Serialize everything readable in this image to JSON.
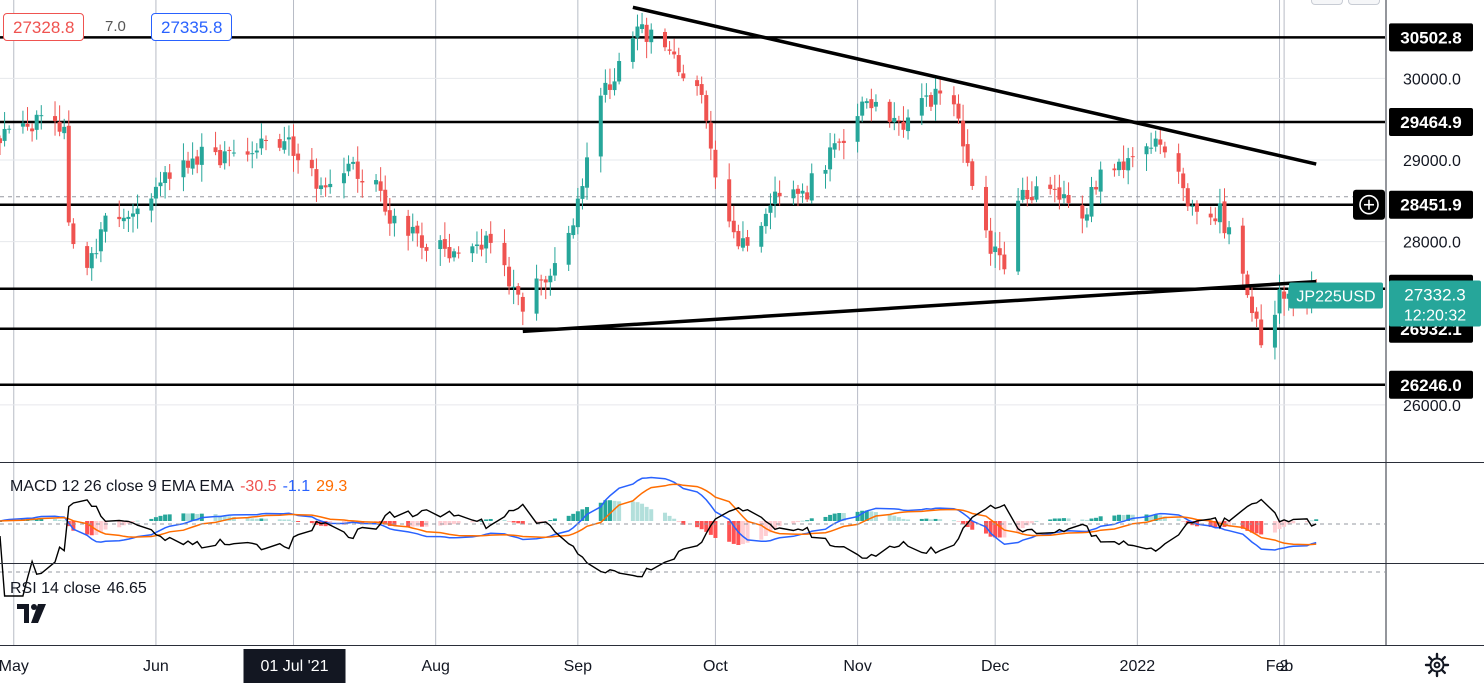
{
  "quote": {
    "sell": "27328.8",
    "spread": "7.0",
    "buy": "27335.8"
  },
  "symbol": {
    "label": "JP225USD",
    "last": "27332.3",
    "countdown": "12:20:32",
    "color": "#26a69a"
  },
  "colors": {
    "up": "#26a69a",
    "down": "#ef5350",
    "macd_line": "#2962ff",
    "signal_line": "#ff6d00",
    "hist_up_strong": "#26a69a",
    "hist_up_weak": "#b2dfdb",
    "hist_down_strong": "#ff5252",
    "hist_down_weak": "#ffcdd2",
    "rsi": "#000000",
    "grid": "#b8bcc6"
  },
  "macd_legend": {
    "title": "MACD 12 26 close 9 EMA EMA",
    "hist": "-30.5",
    "macd": "-1.1",
    "signal": "29.3"
  },
  "rsi_legend": {
    "title": "RSI 14 close",
    "value": "46.65"
  },
  "icons": [
    "tradingview-logo-icon",
    "crosshair-plus-icon",
    "gear-icon"
  ],
  "chart_data": [
    {
      "type": "candlestick",
      "title": "",
      "x_range": [
        "2021-04-28",
        "2022-02-24"
      ],
      "ylim": [
        25300,
        30960
      ],
      "y_ticks": [
        "30000.0",
        "29000.0",
        "28000.0",
        "26000.0"
      ],
      "x_ticks": [
        "May",
        "Jun",
        "01 Jul '21",
        "Aug",
        "Sep",
        "Oct",
        "Nov",
        "Dec",
        "2022",
        "Feb",
        "2"
      ],
      "x_ticks_dates": [
        "2021-05-01",
        "2021-06-01",
        "2021-07-01",
        "2021-08-01",
        "2021-09-01",
        "2021-10-01",
        "2021-11-01",
        "2021-12-01",
        "2022-01-01",
        "2022-02-01",
        "2022-02-02"
      ],
      "horizontal_levels": [
        "30502.8",
        "29464.9",
        "28451.9",
        "27422.9",
        "26932.1",
        "26246.0"
      ],
      "dashed_level": "28451.9",
      "trendlines": [
        {
          "from": [
            "2021-09-13",
            30870
          ],
          "to": [
            "2022-02-09",
            28950
          ]
        },
        {
          "from": [
            "2021-08-20",
            26900
          ],
          "to": [
            "2022-02-09",
            27510
          ]
        }
      ],
      "anchors": [
        [
          "2021-04-28",
          29300
        ],
        [
          "2021-05-07",
          29500
        ],
        [
          "2021-05-12",
          29400
        ],
        [
          "2021-05-13",
          28150
        ],
        [
          "2021-05-17",
          27650
        ],
        [
          "2021-05-21",
          28200
        ],
        [
          "2021-05-28",
          28300
        ],
        [
          "2021-06-04",
          28800
        ],
        [
          "2021-06-11",
          29050
        ],
        [
          "2021-06-18",
          29000
        ],
        [
          "2021-06-25",
          29200
        ],
        [
          "2021-06-30",
          29150
        ],
        [
          "2021-07-06",
          28700
        ],
        [
          "2021-07-13",
          28950
        ],
        [
          "2021-07-20",
          28600
        ],
        [
          "2021-07-23",
          28200
        ],
        [
          "2021-07-30",
          27950
        ],
        [
          "2021-08-06",
          27900
        ],
        [
          "2021-08-13",
          28000
        ],
        [
          "2021-08-20",
          27250
        ],
        [
          "2021-08-27",
          27700
        ],
        [
          "2021-09-01",
          28400
        ],
        [
          "2021-09-06",
          29700
        ],
        [
          "2021-09-10",
          30200
        ],
        [
          "2021-09-14",
          30650
        ],
        [
          "2021-09-20",
          30300
        ],
        [
          "2021-09-24",
          30100
        ],
        [
          "2021-09-28",
          29700
        ],
        [
          "2021-10-01",
          28900
        ],
        [
          "2021-10-06",
          27850
        ],
        [
          "2021-10-10",
          28100
        ],
        [
          "2021-10-14",
          28500
        ],
        [
          "2021-10-20",
          28550
        ],
        [
          "2021-10-25",
          29000
        ],
        [
          "2021-10-29",
          29300
        ],
        [
          "2021-11-04",
          29750
        ],
        [
          "2021-11-10",
          29400
        ],
        [
          "2021-11-16",
          29800
        ],
        [
          "2021-11-22",
          29650
        ],
        [
          "2021-11-26",
          28800
        ],
        [
          "2021-11-30",
          27950
        ],
        [
          "2021-12-03",
          27700
        ],
        [
          "2021-12-07",
          28600
        ],
        [
          "2021-12-13",
          28650
        ],
        [
          "2021-12-20",
          28300
        ],
        [
          "2021-12-24",
          28800
        ],
        [
          "2021-12-30",
          28900
        ],
        [
          "2022-01-05",
          29300
        ],
        [
          "2022-01-10",
          28750
        ],
        [
          "2022-01-14",
          28350
        ],
        [
          "2022-01-19",
          28350
        ],
        [
          "2022-01-24",
          27600
        ],
        [
          "2022-01-27",
          27000
        ],
        [
          "2022-01-29",
          26650
        ],
        [
          "2022-02-01",
          27350
        ],
        [
          "2022-02-04",
          27300
        ],
        [
          "2022-02-09",
          27332
        ]
      ]
    },
    {
      "type": "line",
      "title": "MACD 12 26 close 9 EMA EMA",
      "y_ticks": [
        "0.0"
      ],
      "series": [
        {
          "name": "MACD"
        },
        {
          "name": "Signal"
        },
        {
          "name": "Histogram"
        }
      ]
    },
    {
      "type": "line",
      "title": "RSI 14 close",
      "y_ticks": [
        "80.00",
        "40.00"
      ],
      "series": [
        {
          "name": "RSI"
        }
      ]
    }
  ]
}
